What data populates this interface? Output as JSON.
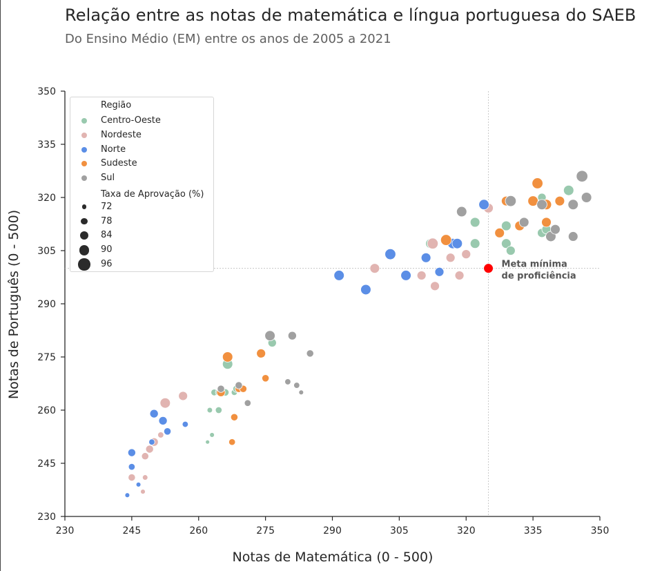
{
  "chart_data": {
    "type": "scatter",
    "title": "Relação entre as notas de matemática e língua portuguesa do SAEB",
    "subtitle": "Do Ensino Médio (EM) entre os anos de 2005 a 2021",
    "xlabel": "Notas de Matemática (0 - 500)",
    "ylabel": "Notas de Português (0 - 500)",
    "xlim": [
      230,
      350
    ],
    "ylim": [
      230,
      350
    ],
    "xticks": [
      "230",
      "245",
      "260",
      "275",
      "290",
      "305",
      "320",
      "335",
      "350"
    ],
    "yticks": [
      "230",
      "245",
      "260",
      "275",
      "290",
      "305",
      "320",
      "335",
      "350"
    ],
    "grid": false,
    "legend": {
      "placement": "upper left",
      "hue_title": "Região",
      "size_title": "Taxa de Aprovação (%)",
      "size_levels": [
        72,
        78,
        84,
        90,
        96
      ]
    },
    "reference": {
      "x": 325,
      "y": 300,
      "color": "#ff0000",
      "label_line1": "Meta mínima",
      "label_line2": "de proficiência"
    },
    "series": [
      {
        "name": "Centro-Oeste",
        "color": "#99c9ae",
        "points": [
          [
            263.5,
            265,
            78
          ],
          [
            264.5,
            265,
            78
          ],
          [
            266,
            265,
            80
          ],
          [
            268,
            265,
            76
          ],
          [
            268.5,
            266,
            80
          ],
          [
            266.5,
            273,
            90
          ],
          [
            276.5,
            279,
            84
          ],
          [
            262.5,
            260,
            74
          ],
          [
            264.5,
            260,
            78
          ],
          [
            263,
            253,
            72
          ],
          [
            262,
            251,
            70
          ],
          [
            312,
            307,
            88
          ],
          [
            322,
            313,
            88
          ],
          [
            322,
            307,
            88
          ],
          [
            329,
            312,
            88
          ],
          [
            329,
            307,
            88
          ],
          [
            330,
            305,
            86
          ],
          [
            337,
            310,
            86
          ],
          [
            338,
            311,
            86
          ],
          [
            343,
            322,
            90
          ],
          [
            337,
            320,
            84
          ]
        ]
      },
      {
        "name": "Nordeste",
        "color": "#e1b4b1",
        "points": [
          [
            252.5,
            262,
            90
          ],
          [
            256.5,
            264,
            86
          ],
          [
            248,
            247,
            80
          ],
          [
            249,
            249,
            82
          ],
          [
            250,
            251,
            84
          ],
          [
            251.5,
            253,
            76
          ],
          [
            245,
            241,
            80
          ],
          [
            248,
            241,
            74
          ],
          [
            247.5,
            237,
            72
          ],
          [
            299.5,
            300,
            88
          ],
          [
            310,
            298,
            86
          ],
          [
            312.5,
            307,
            92
          ],
          [
            313,
            295,
            86
          ],
          [
            317,
            307,
            88
          ],
          [
            316.5,
            303,
            86
          ],
          [
            318.5,
            298,
            86
          ],
          [
            320,
            304,
            86
          ],
          [
            325,
            317,
            88
          ]
        ]
      },
      {
        "name": "Norte",
        "color": "#5b8ee6",
        "points": [
          [
            244,
            236,
            72
          ],
          [
            245,
            244,
            78
          ],
          [
            245,
            248,
            82
          ],
          [
            246.5,
            239,
            72
          ],
          [
            249.5,
            251,
            76
          ],
          [
            250,
            259,
            84
          ],
          [
            252,
            257,
            84
          ],
          [
            253,
            254,
            80
          ],
          [
            257,
            256,
            76
          ],
          [
            291.5,
            298,
            90
          ],
          [
            297.5,
            294,
            90
          ],
          [
            303,
            304,
            92
          ],
          [
            306.5,
            298,
            90
          ],
          [
            311,
            303,
            88
          ],
          [
            314,
            299,
            86
          ],
          [
            317,
            307,
            90
          ],
          [
            318,
            307,
            90
          ],
          [
            324,
            318,
            90
          ]
        ]
      },
      {
        "name": "Sudeste",
        "color": "#f1903f",
        "points": [
          [
            265,
            265,
            84
          ],
          [
            266.5,
            275,
            90
          ],
          [
            268,
            258,
            80
          ],
          [
            267.5,
            251,
            78
          ],
          [
            269,
            266,
            80
          ],
          [
            270,
            266,
            80
          ],
          [
            274,
            276,
            86
          ],
          [
            275,
            269,
            80
          ],
          [
            315.5,
            308,
            92
          ],
          [
            327.5,
            310,
            88
          ],
          [
            329,
            319,
            88
          ],
          [
            332,
            312,
            88
          ],
          [
            335,
            319,
            90
          ],
          [
            338,
            318,
            90
          ],
          [
            338,
            313,
            88
          ],
          [
            336,
            324,
            92
          ],
          [
            341,
            319,
            88
          ]
        ]
      },
      {
        "name": "Sul",
        "color": "#a0a0a0",
        "points": [
          [
            265,
            266,
            80
          ],
          [
            269,
            267,
            80
          ],
          [
            271,
            262,
            78
          ],
          [
            276,
            281,
            90
          ],
          [
            280,
            268,
            76
          ],
          [
            281,
            281,
            84
          ],
          [
            282,
            267,
            76
          ],
          [
            283,
            265,
            72
          ],
          [
            285,
            276,
            80
          ],
          [
            319,
            316,
            90
          ],
          [
            330,
            319,
            92
          ],
          [
            333,
            313,
            88
          ],
          [
            337,
            318,
            90
          ],
          [
            339,
            309,
            90
          ],
          [
            340,
            311,
            88
          ],
          [
            344,
            309,
            88
          ],
          [
            344,
            318,
            90
          ],
          [
            346,
            326,
            94
          ],
          [
            347,
            320,
            90
          ]
        ]
      }
    ]
  }
}
